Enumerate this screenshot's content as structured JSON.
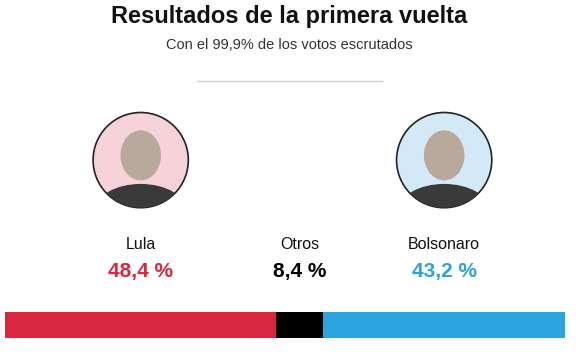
{
  "chart_data": {
    "type": "bar",
    "title": "Resultados de la primera vuelta",
    "subtitle": "Con el 99,9% de los votos escrutados",
    "orientation": "horizontal",
    "stacked": true,
    "data_labels": true,
    "tick_labels": false,
    "categories": [
      null
    ],
    "xlim": [
      0,
      100
    ],
    "series": [
      {
        "name": "Lula",
        "color": "#d7283f",
        "values": [
          48.4
        ],
        "value_labels": [
          "48,4 %"
        ]
      },
      {
        "name": "Otros",
        "color": "#000000",
        "values": [
          8.4
        ],
        "value_labels": [
          "8,4 %"
        ]
      },
      {
        "name": "Bolsonaro",
        "color": "#2aa3df",
        "values": [
          43.2
        ],
        "value_labels": [
          "43,2 %"
        ]
      }
    ]
  }
}
